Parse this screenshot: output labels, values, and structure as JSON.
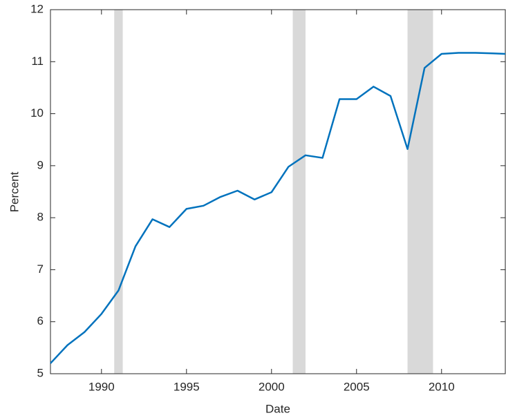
{
  "chart_data": {
    "type": "line",
    "x_label": "Date",
    "y_label": "Percent",
    "x": [
      1987,
      1988,
      1989,
      1990,
      1991,
      1992,
      1993,
      1994,
      1995,
      1996,
      1997,
      1998,
      1999,
      2000,
      2001,
      2002,
      2003,
      2004,
      2005,
      2006,
      2007,
      2008,
      2009,
      2010,
      2011,
      2012,
      2013,
      2013.75
    ],
    "series": [
      {
        "color": "#0072bd",
        "values": [
          5.2,
          5.55,
          5.8,
          6.15,
          6.6,
          7.45,
          7.97,
          7.82,
          8.17,
          8.23,
          8.4,
          8.52,
          8.35,
          8.49,
          8.98,
          9.2,
          9.15,
          10.28,
          10.28,
          10.52,
          10.34,
          9.32,
          10.88,
          11.15,
          11.17,
          11.17,
          11.16,
          11.15
        ]
      }
    ],
    "shading": [
      [
        1990.75,
        1991.25
      ],
      [
        2001.25,
        2002
      ],
      [
        2008,
        2009.5
      ]
    ],
    "shading_color": "#d9d9d9",
    "xlim": [
      1987,
      2013.75
    ],
    "xticks": [
      1990,
      1995,
      2000,
      2005,
      2010
    ],
    "ylim": [
      5,
      12
    ],
    "yticks": [
      5,
      6,
      7,
      8,
      9,
      10,
      11,
      12
    ]
  }
}
